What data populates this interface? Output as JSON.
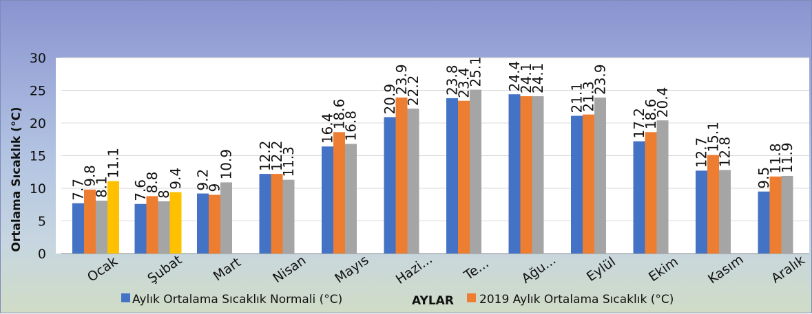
{
  "chart_data": {
    "type": "bar",
    "xlabel": "AYLAR",
    "ylabel": "Ortalama Sıcaklık (°C)",
    "ylim": [
      0,
      30
    ],
    "yticks": [
      0,
      5,
      10,
      15,
      20,
      25,
      30
    ],
    "grid": true,
    "legend_position": "bottom",
    "categories": [
      "Ocak",
      "Şubat",
      "Mart",
      "Nisan",
      "Mayıs",
      "Hazi...",
      "Te...",
      "Ağu...",
      "Eylül",
      "Ekim",
      "Kasım",
      "Aralık"
    ],
    "series": [
      {
        "name": "Aylık Ortalama Sıcaklık Normali (°C)",
        "color": "#4472c4",
        "values": [
          7.7,
          7.6,
          9.2,
          12.2,
          16.4,
          20.9,
          23.8,
          24.4,
          21.1,
          17.2,
          12.7,
          9.5
        ]
      },
      {
        "name": "2019 Aylık Ortalama Sıcaklık (°C)",
        "color": "#ed7d31",
        "values": [
          9.8,
          8.8,
          9,
          12.2,
          18.6,
          23.9,
          23.4,
          24.1,
          21.3,
          18.6,
          15.1,
          11.8
        ]
      },
      {
        "color": "#a5a5a5",
        "values": [
          8.1,
          8,
          10.9,
          11.3,
          16.8,
          22.2,
          25.1,
          24.1,
          23.9,
          20.4,
          12.8,
          11.9
        ]
      },
      {
        "color": "#ffc000",
        "values": [
          11.1,
          9.4,
          null,
          null,
          null,
          null,
          null,
          null,
          null,
          null,
          null,
          null
        ]
      }
    ]
  }
}
